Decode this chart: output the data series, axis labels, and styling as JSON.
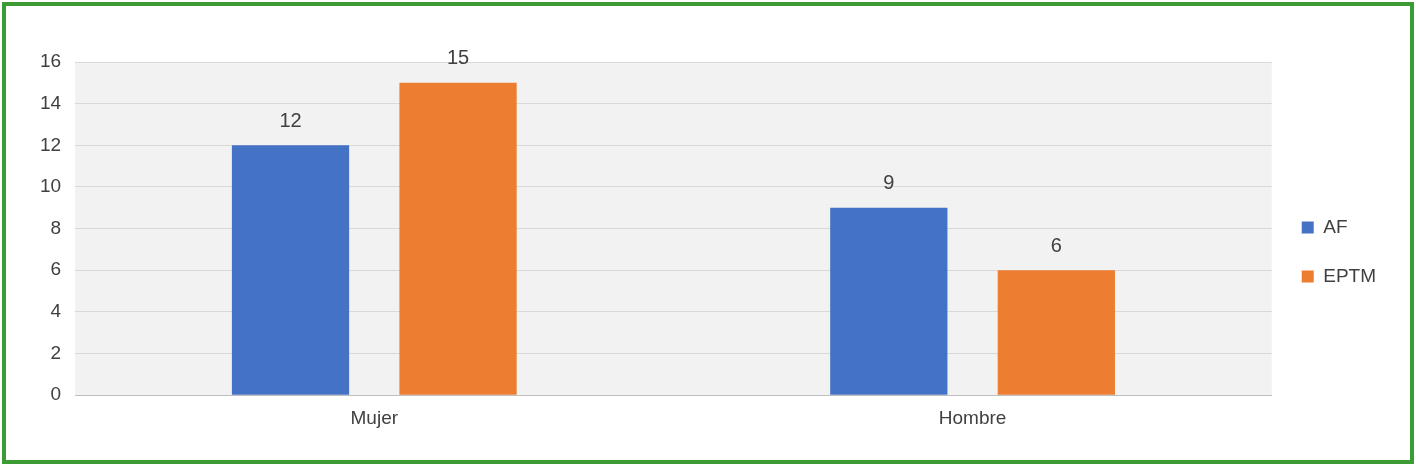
{
  "chart_data": {
    "type": "bar",
    "categories": [
      "Mujer",
      "Hombre"
    ],
    "series": [
      {
        "name": "AF",
        "color": "#4472c4",
        "values": [
          12,
          9
        ]
      },
      {
        "name": "EPTM",
        "color": "#ed7d31",
        "values": [
          15,
          6
        ]
      }
    ],
    "ylim": [
      0,
      16
    ],
    "yticks": [
      0,
      2,
      4,
      6,
      8,
      10,
      12,
      14,
      16
    ],
    "grid": "y",
    "legend": "right",
    "data_labels": true
  }
}
